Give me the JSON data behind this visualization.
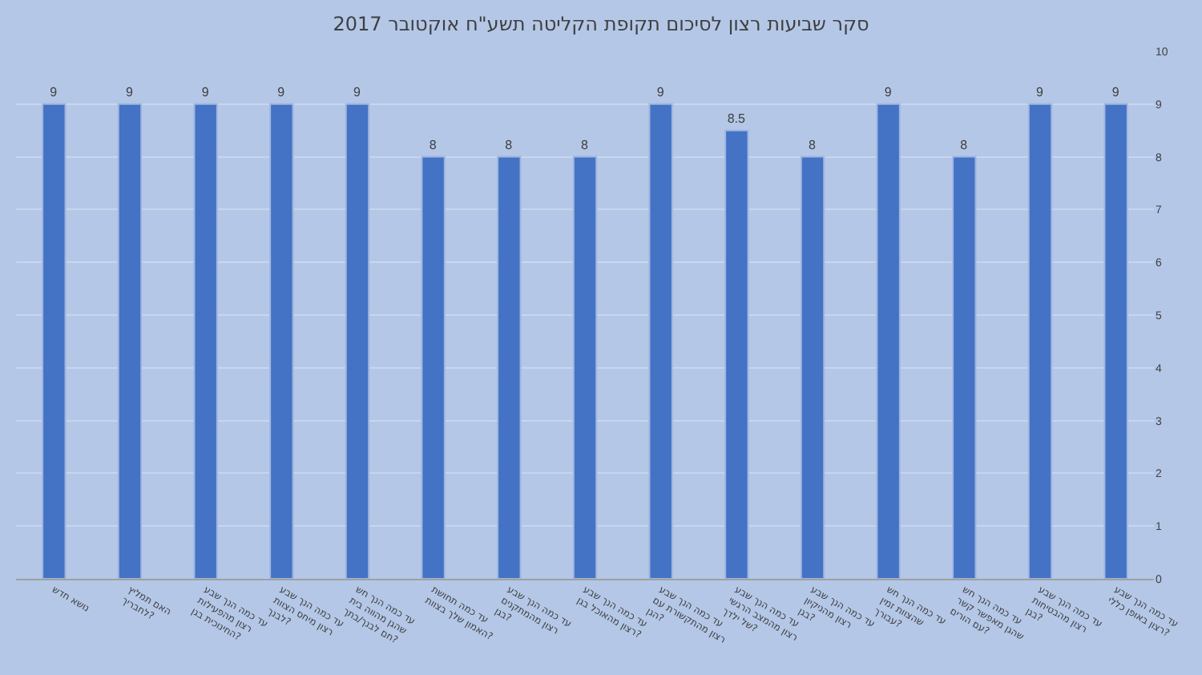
{
  "chart_data": {
    "type": "bar",
    "title": "סקר שביעות רצון לסיכום תקופת הקליטה תשע\"ח אוקטובר 2017",
    "categories": [
      "נושא חדש",
      "האם תמליץ לחבריך?",
      "עד כמה הנך שבע רצון מהפעילות החינוכית בגן?",
      "עד כמה הנך שבע רצון מיחס הצוות לבנך?",
      "עד כמה הנך חש שהגן מהווה בית חם לבנך/בתך?",
      "עד כמה תחושת האמון שלך בצוות?",
      "עד כמה הנך שבע רצון מהמתקנים בגן?",
      "עד כמה הנך שבע רצון מהאוכל בגן?",
      "עד כמה הנך שבע רצון מהתקשורת עם הגן?",
      "עד כמה הנך שבע רצון מהמצב הרגשי של ילדך?",
      "עד כמה הנך שבע רצון מהניקיון בגן?",
      "עד כמה הנך חש שהצוות זמין עבורך?",
      "עד כמה הנך חש שהגן מאפשר קשר עם הורים?",
      "עד כמה הנך שבע רצון מהבטיחות בגן?",
      "עד כמה הנך שבע רצון באופן כללי?"
    ],
    "values": [
      9,
      9,
      9,
      9,
      9,
      8,
      8,
      8,
      9,
      8.5,
      8,
      9,
      8,
      9,
      9
    ],
    "color": "#4472c4",
    "ylim": [
      0,
      10
    ],
    "yticks": [
      0,
      1,
      2,
      3,
      4,
      5,
      6,
      7,
      8,
      9,
      10
    ],
    "grid": "y",
    "data_labels": true
  }
}
